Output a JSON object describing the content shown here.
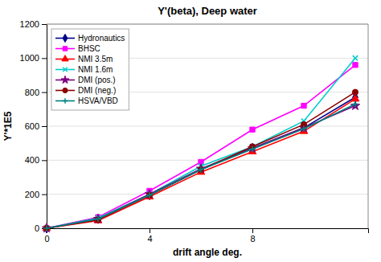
{
  "chart_data": {
    "type": "line",
    "title": "Y'(beta), Deep water",
    "x_label": "drift angle deg.",
    "y_label": "Y'*1E5",
    "x": [
      0,
      2,
      4,
      6,
      8,
      10,
      12
    ],
    "xlim": [
      0,
      12.5
    ],
    "ylim": [
      0,
      1200
    ],
    "xticks": [
      0,
      4,
      8
    ],
    "yticks": [
      0,
      200,
      400,
      600,
      800,
      1000,
      1200
    ],
    "grid": "y",
    "legend": "upper left",
    "series": [
      {
        "name": "Hydronautics",
        "color": "#00008B",
        "marker": "diamond",
        "values": [
          0,
          55,
          195,
          345,
          470,
          590,
          770
        ]
      },
      {
        "name": "BHSC",
        "color": "#FF00FF",
        "marker": "square",
        "values": [
          0,
          65,
          220,
          390,
          580,
          720,
          960
        ]
      },
      {
        "name": "NMI 3.5m",
        "color": "#FF0000",
        "marker": "triangle",
        "values": [
          0,
          45,
          185,
          330,
          450,
          570,
          760
        ]
      },
      {
        "name": "NMI 1.6m",
        "color": "#00CCCC",
        "marker": "x",
        "values": [
          0,
          60,
          200,
          365,
          480,
          630,
          1000
        ]
      },
      {
        "name": "DMI (pos.)",
        "color": "#800080",
        "marker": "star",
        "values": [
          0,
          55,
          200,
          350,
          470,
          590,
          720
        ]
      },
      {
        "name": "DMI (neg.)",
        "color": "#8B0000",
        "marker": "circle",
        "values": [
          0,
          50,
          195,
          345,
          480,
          610,
          800
        ]
      },
      {
        "name": "HSVA/VBD",
        "color": "#008080",
        "marker": "plus",
        "values": [
          0,
          55,
          195,
          345,
          465,
          585,
          730
        ]
      }
    ]
  }
}
